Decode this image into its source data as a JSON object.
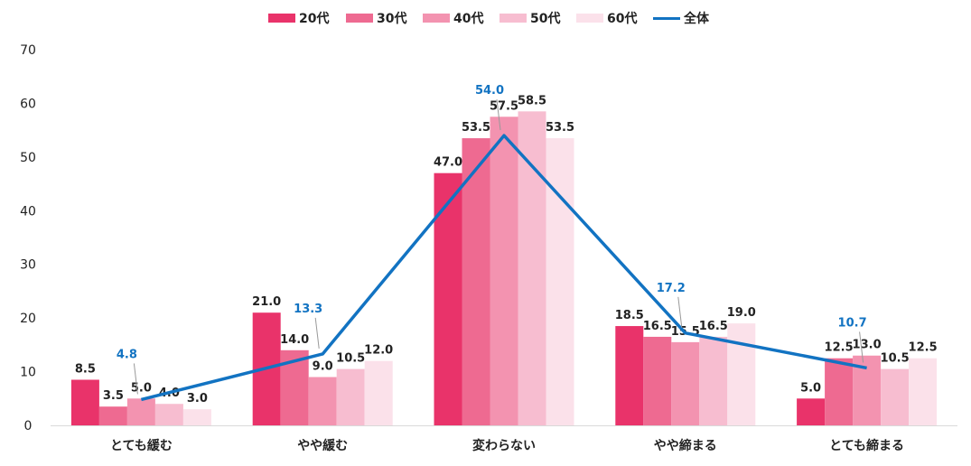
{
  "chart_data": {
    "type": "bar",
    "categories": [
      "とても緩む",
      "やや緩む",
      "変わらない",
      "やや締まる",
      "とても締まる"
    ],
    "series": [
      {
        "name": "20代",
        "type": "bar",
        "color": "#E9336A",
        "values": [
          8.5,
          21.0,
          47.0,
          18.5,
          5.0
        ]
      },
      {
        "name": "30代",
        "type": "bar",
        "color": "#EE6A91",
        "values": [
          3.5,
          14.0,
          53.5,
          16.5,
          12.5
        ]
      },
      {
        "name": "40代",
        "type": "bar",
        "color": "#F393B0",
        "values": [
          5.0,
          9.0,
          57.5,
          15.5,
          13.0
        ]
      },
      {
        "name": "50代",
        "type": "bar",
        "color": "#F7BDD0",
        "values": [
          4.0,
          10.5,
          58.5,
          16.5,
          10.5
        ]
      },
      {
        "name": "60代",
        "type": "bar",
        "color": "#FBE1EA",
        "values": [
          3.0,
          12.0,
          53.5,
          19.0,
          12.5
        ]
      },
      {
        "name": "全体",
        "type": "line",
        "color": "#1273C2",
        "values": [
          4.8,
          13.3,
          54.0,
          17.2,
          10.7
        ]
      }
    ],
    "ylim": [
      0,
      70
    ],
    "yticks": [
      0,
      10,
      20,
      30,
      40,
      50,
      60,
      70
    ],
    "legend_position": "top",
    "grid": false
  }
}
